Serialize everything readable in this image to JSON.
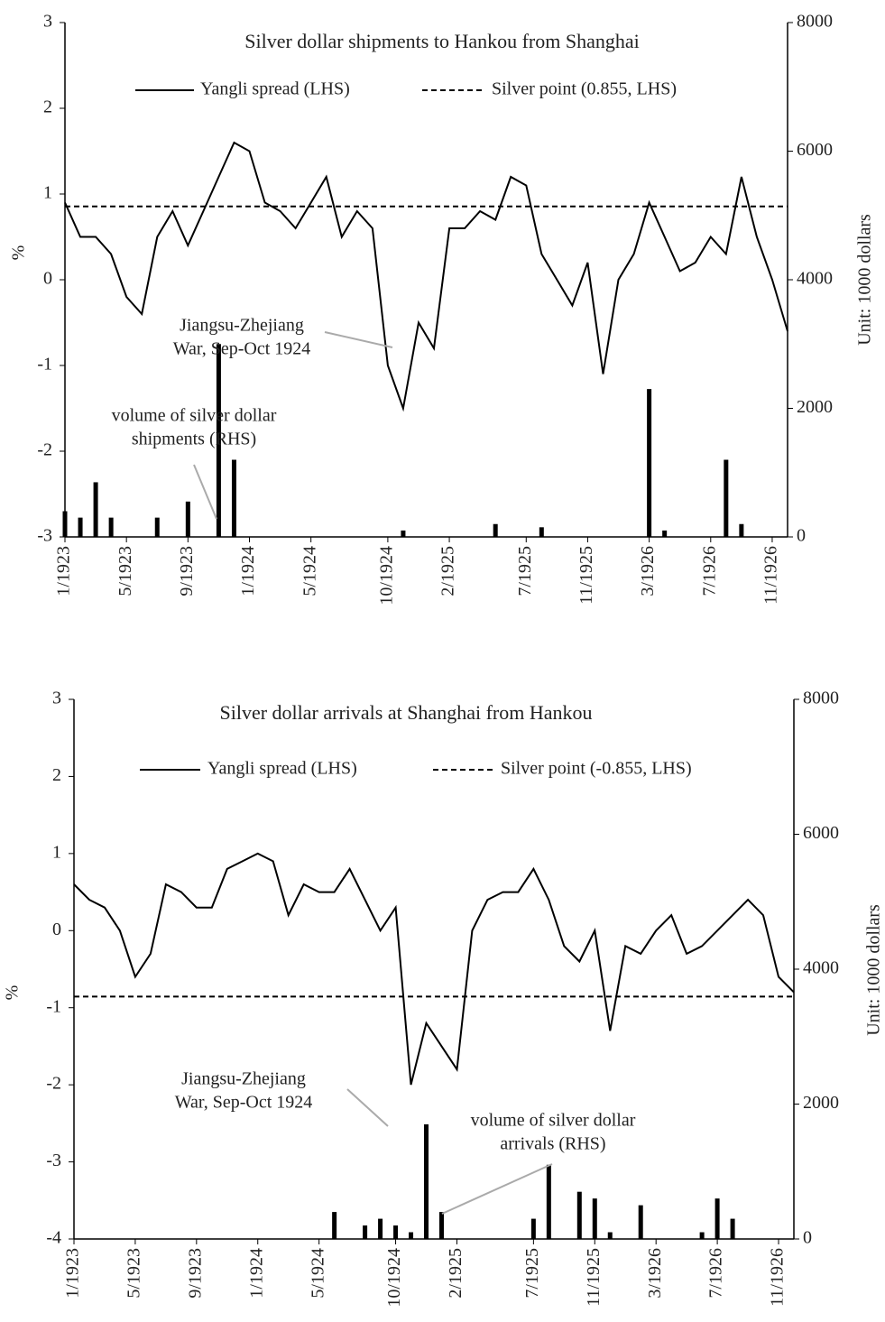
{
  "chart_data": [
    {
      "type": "line",
      "title": "Silver dollar shipments to Hankou from Shanghai",
      "y_label": "%",
      "y2_label": "Unit: 1000 dollars",
      "x": [
        "1923-01",
        "1923-02",
        "1923-03",
        "1923-04",
        "1923-05",
        "1923-06",
        "1923-07",
        "1923-08",
        "1923-09",
        "1923-10",
        "1923-11",
        "1923-12",
        "1924-01",
        "1924-02",
        "1924-03",
        "1924-04",
        "1924-05",
        "1924-06",
        "1924-07",
        "1924-08",
        "1924-09",
        "1924-10",
        "1924-11",
        "1924-12",
        "1925-01",
        "1925-02",
        "1925-03",
        "1925-04",
        "1925-05",
        "1925-06",
        "1925-07",
        "1925-08",
        "1925-09",
        "1925-10",
        "1925-11",
        "1925-12",
        "1926-01",
        "1926-02",
        "1926-03",
        "1926-04",
        "1926-05",
        "1926-06",
        "1926-07",
        "1926-08",
        "1926-09",
        "1926-10",
        "1926-11",
        "1926-12"
      ],
      "xlim": [
        "1923-01",
        "1926-12"
      ],
      "xticks": [
        {
          "value": "1923-01",
          "label": "1/1923"
        },
        {
          "value": "1923-05",
          "label": "5/1923"
        },
        {
          "value": "1923-09",
          "label": "9/1923"
        },
        {
          "value": "1924-01",
          "label": "1/1924"
        },
        {
          "value": "1924-05",
          "label": "5/1924"
        },
        {
          "value": "1924-10",
          "label": "10/1924"
        },
        {
          "value": "1925-02",
          "label": "2/1925"
        },
        {
          "value": "1925-07",
          "label": "7/1925"
        },
        {
          "value": "1925-11",
          "label": "11/1925"
        },
        {
          "value": "1926-03",
          "label": "3/1926"
        },
        {
          "value": "1926-07",
          "label": "7/1926"
        },
        {
          "value": "1926-11",
          "label": "11/1926"
        }
      ],
      "ylim": [
        -3,
        3
      ],
      "yticks": [
        -3,
        -2,
        -1,
        0,
        1,
        2,
        3
      ],
      "y2lim": [
        0,
        8000
      ],
      "y2ticks": [
        0,
        2000,
        4000,
        6000,
        8000
      ],
      "series": [
        {
          "name": "Yangli spread (LHS)",
          "color": "#000000",
          "values": [
            0.9,
            0.5,
            0.5,
            0.3,
            -0.2,
            -0.4,
            0.5,
            0.8,
            0.4,
            0.8,
            1.2,
            1.6,
            1.5,
            0.9,
            0.8,
            0.6,
            0.9,
            1.2,
            0.5,
            0.8,
            0.6,
            -1.0,
            -1.5,
            -0.5,
            -0.8,
            0.6,
            0.6,
            0.8,
            0.7,
            1.2,
            1.1,
            0.3,
            0.0,
            -0.3,
            0.2,
            -1.1,
            0.0,
            0.3,
            0.9,
            0.5,
            0.1,
            0.2,
            0.5,
            0.3,
            1.2,
            0.5,
            0.0,
            -0.6
          ]
        }
      ],
      "reference_lines": [
        {
          "name": "Silver point (0.855, LHS)",
          "value": 0.855,
          "color": "#000000",
          "style": "dashed"
        }
      ],
      "bars": {
        "axis": "y2",
        "color": "#000000",
        "values": [
          400,
          300,
          850,
          300,
          null,
          null,
          300,
          null,
          550,
          null,
          3000,
          1200,
          null,
          null,
          null,
          null,
          null,
          null,
          null,
          null,
          null,
          null,
          100,
          null,
          null,
          null,
          null,
          null,
          200,
          null,
          null,
          150,
          null,
          null,
          null,
          null,
          null,
          null,
          2300,
          100,
          null,
          null,
          null,
          1200,
          200,
          null,
          null,
          null
        ]
      },
      "annotations": [
        {
          "lines": [
            "Jiangsu-Zhejiang",
            "War, Sep-Oct 1924"
          ]
        },
        {
          "lines": [
            "volume of silver dollar",
            "shipments (RHS)"
          ]
        }
      ]
    },
    {
      "type": "line",
      "title": "Silver dollar arrivals at Shanghai from Hankou",
      "y_label": "%",
      "y2_label": "Unit: 1000 dollars",
      "x": [
        "1923-01",
        "1923-02",
        "1923-03",
        "1923-04",
        "1923-05",
        "1923-06",
        "1923-07",
        "1923-08",
        "1923-09",
        "1923-10",
        "1923-11",
        "1923-12",
        "1924-01",
        "1924-02",
        "1924-03",
        "1924-04",
        "1924-05",
        "1924-06",
        "1924-07",
        "1924-08",
        "1924-09",
        "1924-10",
        "1924-11",
        "1924-12",
        "1925-01",
        "1925-02",
        "1925-03",
        "1925-04",
        "1925-05",
        "1925-06",
        "1925-07",
        "1925-08",
        "1925-09",
        "1925-10",
        "1925-11",
        "1925-12",
        "1926-01",
        "1926-02",
        "1926-03",
        "1926-04",
        "1926-05",
        "1926-06",
        "1926-07",
        "1926-08",
        "1926-09",
        "1926-10",
        "1926-11",
        "1926-12"
      ],
      "xlim": [
        "1923-01",
        "1926-12"
      ],
      "xticks": [
        {
          "value": "1923-01",
          "label": "1/1923"
        },
        {
          "value": "1923-05",
          "label": "5/1923"
        },
        {
          "value": "1923-09",
          "label": "9/1923"
        },
        {
          "value": "1924-01",
          "label": "1/1924"
        },
        {
          "value": "1924-05",
          "label": "5/1924"
        },
        {
          "value": "1924-10",
          "label": "10/1924"
        },
        {
          "value": "1925-02",
          "label": "2/1925"
        },
        {
          "value": "1925-07",
          "label": "7/1925"
        },
        {
          "value": "1925-11",
          "label": "11/1925"
        },
        {
          "value": "1926-03",
          "label": "3/1926"
        },
        {
          "value": "1926-07",
          "label": "7/1926"
        },
        {
          "value": "1926-11",
          "label": "11/1926"
        }
      ],
      "ylim": [
        -4,
        3
      ],
      "yticks": [
        -4,
        -3,
        -2,
        -1,
        0,
        1,
        2,
        3
      ],
      "y2lim": [
        0,
        8000
      ],
      "y2ticks": [
        0,
        2000,
        4000,
        6000,
        8000
      ],
      "series": [
        {
          "name": "Yangli spread (LHS)",
          "color": "#000000",
          "values": [
            0.6,
            0.4,
            0.3,
            0.0,
            -0.6,
            -0.3,
            0.6,
            0.5,
            0.3,
            0.3,
            0.8,
            0.9,
            1.0,
            0.9,
            0.2,
            0.6,
            0.5,
            0.5,
            0.8,
            0.4,
            0.0,
            0.3,
            -2.0,
            -1.2,
            -1.5,
            -1.8,
            0.0,
            0.4,
            0.5,
            0.5,
            0.8,
            0.4,
            -0.2,
            -0.4,
            0.0,
            -1.3,
            -0.2,
            -0.3,
            0.0,
            0.2,
            -0.3,
            -0.2,
            0.0,
            0.2,
            0.4,
            0.2,
            -0.6,
            -0.8
          ]
        }
      ],
      "reference_lines": [
        {
          "name": "Silver point (-0.855, LHS)",
          "value": -0.855,
          "color": "#000000",
          "style": "dashed"
        }
      ],
      "bars": {
        "axis": "y2",
        "color": "#000000",
        "values": [
          null,
          null,
          null,
          null,
          null,
          null,
          null,
          null,
          null,
          null,
          null,
          null,
          null,
          null,
          null,
          null,
          null,
          400,
          null,
          200,
          300,
          200,
          100,
          1700,
          400,
          null,
          null,
          null,
          null,
          null,
          300,
          1100,
          null,
          700,
          600,
          100,
          null,
          500,
          null,
          null,
          null,
          100,
          600,
          300,
          null,
          null,
          null,
          null
        ]
      },
      "annotations": [
        {
          "lines": [
            "Jiangsu-Zhejiang",
            "War, Sep-Oct 1924"
          ]
        },
        {
          "lines": [
            "volume of silver dollar",
            "arrivals (RHS)"
          ]
        }
      ]
    }
  ]
}
